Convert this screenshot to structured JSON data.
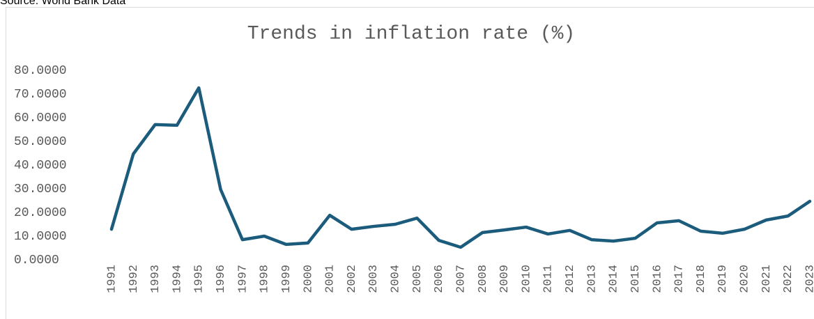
{
  "chart_data": {
    "type": "line",
    "source": "Source: World Bank Data",
    "title": "Trends in inflation rate (%)",
    "categories": [
      "1991",
      "1992",
      "1993",
      "1994",
      "1995",
      "1996",
      "1997",
      "1998",
      "1999",
      "2000",
      "2001",
      "2002",
      "2003",
      "2004",
      "2005",
      "2006",
      "2007",
      "2008",
      "2009",
      "2010",
      "2011",
      "2012",
      "2013",
      "2014",
      "2015",
      "2016",
      "2017",
      "2018",
      "2019",
      "2020",
      "2021",
      "2022",
      "2023"
    ],
    "values": [
      12.9,
      44.7,
      57.1,
      56.8,
      72.6,
      29.7,
      8.5,
      10.0,
      6.5,
      7.1,
      18.8,
      12.9,
      14.1,
      15.0,
      17.6,
      8.2,
      5.3,
      11.5,
      12.6,
      13.8,
      10.9,
      12.4,
      8.5,
      7.9,
      9.1,
      15.6,
      16.5,
      12.1,
      11.2,
      12.9,
      16.8,
      18.5,
      24.7
    ],
    "color": "#1b5b7b",
    "ylim": [
      0,
      80
    ],
    "yticks": [
      {
        "value": 0,
        "label": "0.0000"
      },
      {
        "value": 10,
        "label": "10.0000"
      },
      {
        "value": 20,
        "label": "20.0000"
      },
      {
        "value": 30,
        "label": "30.0000"
      },
      {
        "value": 40,
        "label": "40.0000"
      },
      {
        "value": 50,
        "label": "50.0000"
      },
      {
        "value": 60,
        "label": "60.0000"
      },
      {
        "value": 70,
        "label": "70.0000"
      },
      {
        "value": 80,
        "label": "80.0000"
      }
    ],
    "grid": false
  }
}
